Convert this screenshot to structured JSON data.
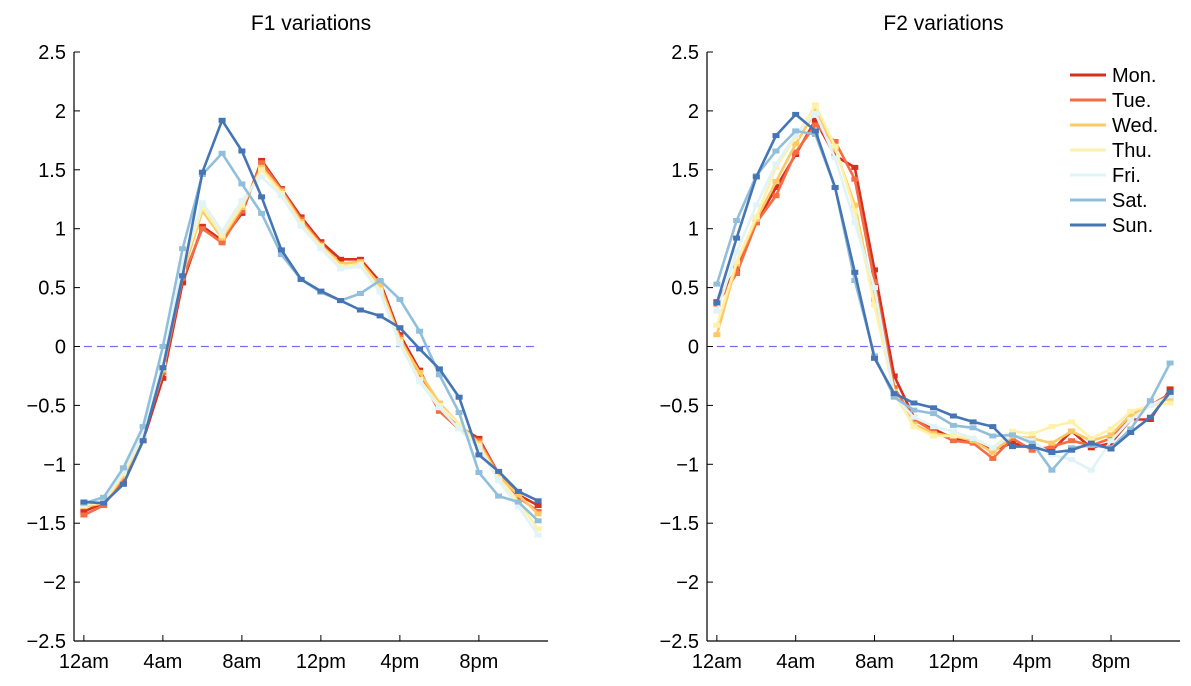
{
  "chart_data": [
    {
      "type": "line",
      "title": "F1 variations",
      "xlabel": "",
      "ylabel": "",
      "xlim": [
        -0.5,
        23.5
      ],
      "ylim": [
        -2.5,
        2.5
      ],
      "xticks": [
        0,
        4,
        8,
        12,
        16,
        20
      ],
      "xtick_labels": [
        "12am",
        "4am",
        "8am",
        "12pm",
        "4pm",
        "8pm"
      ],
      "yticks": [
        2.5,
        2,
        1.5,
        1,
        0.5,
        0,
        -0.5,
        -1,
        -1.5,
        -2,
        -2.5
      ],
      "ytick_labels": [
        "2.5",
        "2",
        "1.5",
        "1",
        "0.5",
        "0",
        "−0.5",
        "−1",
        "−1.5",
        "−2",
        "−2.5"
      ],
      "grid": false,
      "reference_line": {
        "y": 0,
        "color": "#6f6ff0",
        "style": "dashed"
      },
      "x": [
        0,
        1,
        2,
        3,
        4,
        5,
        6,
        7,
        8,
        9,
        10,
        11,
        12,
        13,
        14,
        15,
        16,
        17,
        18,
        19,
        20,
        21,
        22,
        23
      ],
      "series": [
        {
          "name": "Mon.",
          "color": "#d7301f",
          "values": [
            -1.4,
            -1.33,
            -1.16,
            -0.8,
            -0.27,
            0.54,
            1.02,
            0.9,
            1.13,
            1.58,
            1.34,
            1.1,
            0.89,
            0.74,
            0.74,
            0.55,
            0.1,
            -0.2,
            -0.53,
            -0.68,
            -0.78,
            -1.08,
            -1.26,
            -1.35
          ]
        },
        {
          "name": "Tue.",
          "color": "#f46d43",
          "values": [
            -1.43,
            -1.35,
            -1.12,
            -0.75,
            -0.22,
            0.58,
            1.0,
            0.88,
            1.15,
            1.56,
            1.33,
            1.08,
            0.87,
            0.7,
            0.72,
            0.52,
            0.08,
            -0.25,
            -0.55,
            -0.7,
            -0.8,
            -1.08,
            -1.28,
            -1.4
          ]
        },
        {
          "name": "Wed.",
          "color": "#fdc866",
          "values": [
            -1.36,
            -1.33,
            -1.1,
            -0.78,
            -0.2,
            0.62,
            1.15,
            0.92,
            1.18,
            1.52,
            1.32,
            1.06,
            0.86,
            0.7,
            0.72,
            0.52,
            0.06,
            -0.22,
            -0.48,
            -0.66,
            -0.82,
            -1.1,
            -1.26,
            -1.42
          ]
        },
        {
          "name": "Thu.",
          "color": "#fff1a8",
          "values": [
            -1.35,
            -1.32,
            -1.08,
            -0.76,
            -0.18,
            0.66,
            1.18,
            0.94,
            1.2,
            1.5,
            1.3,
            1.04,
            0.85,
            0.68,
            0.7,
            0.48,
            0.04,
            -0.28,
            -0.5,
            -0.66,
            -0.84,
            -1.12,
            -1.32,
            -1.55
          ]
        },
        {
          "name": "Fri.",
          "color": "#e0f3f8",
          "values": [
            -1.34,
            -1.3,
            -1.06,
            -0.74,
            -0.15,
            0.7,
            1.22,
            0.98,
            1.24,
            1.44,
            1.28,
            1.02,
            0.83,
            0.66,
            0.68,
            0.46,
            0.02,
            -0.3,
            -0.52,
            -0.7,
            -0.86,
            -1.14,
            -1.36,
            -1.6
          ]
        },
        {
          "name": "Sat.",
          "color": "#91bfdb",
          "values": [
            -1.33,
            -1.28,
            -1.03,
            -0.68,
            0.0,
            0.83,
            1.46,
            1.64,
            1.38,
            1.13,
            0.78,
            0.57,
            0.46,
            0.39,
            0.45,
            0.56,
            0.4,
            0.13,
            -0.24,
            -0.56,
            -1.07,
            -1.27,
            -1.32,
            -1.48
          ]
        },
        {
          "name": "Sun.",
          "color": "#4575b4",
          "values": [
            -1.32,
            -1.33,
            -1.17,
            -0.8,
            -0.18,
            0.6,
            1.48,
            1.92,
            1.66,
            1.27,
            0.82,
            0.57,
            0.47,
            0.39,
            0.31,
            0.26,
            0.16,
            -0.02,
            -0.19,
            -0.43,
            -0.92,
            -1.06,
            -1.23,
            -1.31
          ]
        }
      ]
    },
    {
      "type": "line",
      "title": "F2 variations",
      "xlabel": "",
      "ylabel": "",
      "xlim": [
        -0.5,
        23.5
      ],
      "ylim": [
        -2.5,
        2.5
      ],
      "xticks": [
        0,
        4,
        8,
        12,
        16,
        20
      ],
      "xtick_labels": [
        "12am",
        "4am",
        "8am",
        "12pm",
        "4pm",
        "8pm"
      ],
      "yticks": [
        2.5,
        2,
        1.5,
        1,
        0.5,
        0,
        -0.5,
        -1,
        -1.5,
        -2,
        -2.5
      ],
      "ytick_labels": [
        "2.5",
        "2",
        "1.5",
        "1",
        "0.5",
        "0",
        "−0.5",
        "−1",
        "−1.5",
        "−2",
        "−2.5"
      ],
      "grid": false,
      "legend": "top-right",
      "reference_line": {
        "y": 0,
        "color": "#6f6ff0",
        "style": "dashed"
      },
      "x": [
        0,
        1,
        2,
        3,
        4,
        5,
        6,
        7,
        8,
        9,
        10,
        11,
        12,
        13,
        14,
        15,
        16,
        17,
        18,
        19,
        20,
        21,
        22,
        23
      ],
      "series": [
        {
          "name": "Mon.",
          "color": "#d7301f",
          "values": [
            0.38,
            0.66,
            1.05,
            1.35,
            1.63,
            1.92,
            1.62,
            1.52,
            0.65,
            -0.25,
            -0.6,
            -0.7,
            -0.78,
            -0.8,
            -0.88,
            -0.82,
            -0.86,
            -0.88,
            -0.72,
            -0.86,
            -0.82,
            -0.62,
            -0.62,
            -0.36
          ]
        },
        {
          "name": "Tue.",
          "color": "#f46d43",
          "values": [
            0.36,
            0.62,
            1.05,
            1.28,
            1.65,
            1.88,
            1.74,
            1.42,
            0.55,
            -0.35,
            -0.62,
            -0.72,
            -0.8,
            -0.82,
            -0.95,
            -0.78,
            -0.88,
            -0.85,
            -0.8,
            -0.84,
            -0.78,
            -0.58,
            -0.5,
            -0.4
          ]
        },
        {
          "name": "Wed.",
          "color": "#fdc866",
          "values": [
            0.1,
            0.7,
            1.08,
            1.4,
            1.72,
            2.0,
            1.68,
            1.2,
            0.4,
            -0.38,
            -0.66,
            -0.74,
            -0.76,
            -0.8,
            -0.9,
            -0.76,
            -0.78,
            -0.82,
            -0.72,
            -0.8,
            -0.75,
            -0.58,
            -0.5,
            -0.44
          ]
        },
        {
          "name": "Thu.",
          "color": "#fff1a8",
          "values": [
            0.18,
            0.72,
            1.1,
            1.52,
            1.78,
            2.05,
            1.7,
            1.15,
            0.35,
            -0.4,
            -0.68,
            -0.76,
            -0.76,
            -0.78,
            -0.86,
            -0.72,
            -0.74,
            -0.68,
            -0.64,
            -0.78,
            -0.7,
            -0.55,
            -0.5,
            -0.48
          ]
        },
        {
          "name": "Fri.",
          "color": "#e0f3f8",
          "values": [
            0.3,
            0.8,
            1.2,
            1.55,
            1.8,
            1.98,
            1.6,
            1.05,
            0.5,
            -0.42,
            -0.6,
            -0.68,
            -0.72,
            -0.78,
            -0.86,
            -0.75,
            -0.8,
            -0.92,
            -0.96,
            -1.05,
            -0.8,
            -0.62,
            -0.5,
            -0.42
          ]
        },
        {
          "name": "Sat.",
          "color": "#91bfdb",
          "values": [
            0.53,
            1.07,
            1.45,
            1.66,
            1.83,
            1.8,
            1.35,
            0.56,
            -0.08,
            -0.43,
            -0.54,
            -0.57,
            -0.67,
            -0.69,
            -0.76,
            -0.75,
            -0.82,
            -1.05,
            -0.86,
            -0.84,
            -0.86,
            -0.7,
            -0.46,
            -0.14
          ]
        },
        {
          "name": "Sun.",
          "color": "#4575b4",
          "values": [
            0.37,
            0.92,
            1.44,
            1.79,
            1.97,
            1.83,
            1.35,
            0.63,
            -0.1,
            -0.4,
            -0.48,
            -0.52,
            -0.59,
            -0.64,
            -0.68,
            -0.85,
            -0.85,
            -0.9,
            -0.88,
            -0.82,
            -0.87,
            -0.73,
            -0.6,
            -0.39
          ]
        }
      ]
    }
  ]
}
